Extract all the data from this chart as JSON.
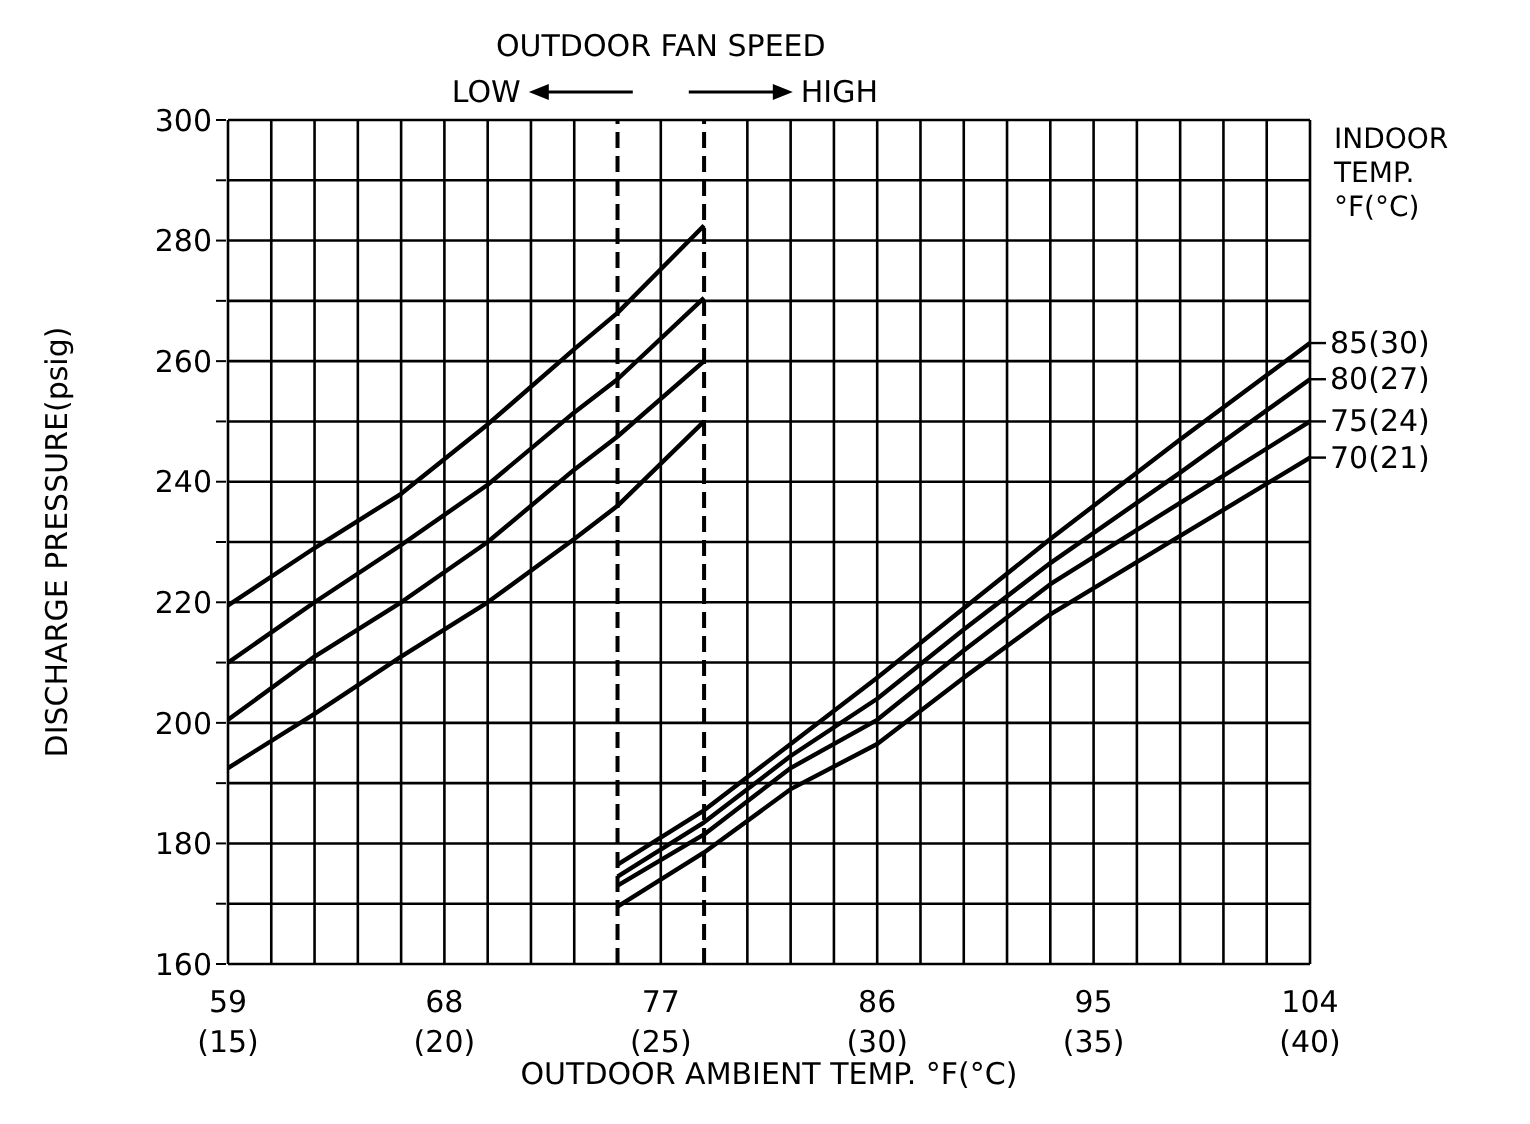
{
  "chart_data": {
    "type": "line",
    "xlabel": "OUTDOOR AMBIENT TEMP. °F(°C)",
    "ylabel": "DISCHARGE PRESSURE(psig)",
    "legend_title": "INDOOR TEMP. °F(°C)",
    "annotations": [
      "OUTDOOR FAN SPEED",
      "LOW",
      "HIGH"
    ],
    "xlim": [
      59,
      104
    ],
    "xticks": [
      59,
      {
        "value": 60.8,
        "label": null
      },
      {
        "value": 62.6,
        "label": null
      },
      {
        "value": 64.4,
        "label": null
      },
      {
        "value": 66.2,
        "label": null
      },
      68,
      {
        "value": 69.8,
        "label": null
      },
      {
        "value": 71.6,
        "label": null
      },
      {
        "value": 73.4,
        "label": null
      },
      77,
      {
        "value": 80.6,
        "label": null
      },
      {
        "value": 82.4,
        "label": null
      },
      {
        "value": 84.2,
        "label": null
      },
      86,
      {
        "value": 87.8,
        "label": null
      },
      {
        "value": 89.6,
        "label": null
      },
      {
        "value": 91.4,
        "label": null
      },
      {
        "value": 93.2,
        "label": null
      },
      95,
      {
        "value": 96.8,
        "label": null
      },
      {
        "value": 98.6,
        "label": null
      },
      {
        "value": 100.4,
        "label": null
      },
      {
        "value": 102.2,
        "label": null
      },
      104
    ],
    "x2lim": [
      15,
      40
    ],
    "x2ticks": [
      {
        "value": 15,
        "label": "(15)"
      },
      {
        "value": 20,
        "label": "(20)"
      },
      {
        "value": 25,
        "label": "(25)"
      },
      {
        "value": 30,
        "label": "(30)"
      },
      {
        "value": 35,
        "label": "(35)"
      },
      {
        "value": 40,
        "label": "(40)"
      }
    ],
    "ylim": [
      160,
      300
    ],
    "yticks": [
      160,
      {
        "value": 170,
        "label": null
      },
      180,
      {
        "value": 190,
        "label": null
      },
      200,
      {
        "value": 210,
        "label": null
      },
      220,
      {
        "value": 230,
        "label": null
      },
      240,
      {
        "value": 250,
        "label": null
      },
      260,
      {
        "value": 270,
        "label": null
      },
      280,
      {
        "value": 290,
        "label": null
      },
      300
    ],
    "grid": true,
    "legend": "right",
    "marker": "none",
    "line_style": "solid",
    "ref_lines": [
      {
        "axis": "x",
        "value": 75.2,
        "label": null,
        "color": "#000000",
        "line_style": "dashed"
      },
      {
        "axis": "x",
        "value": 78.8,
        "label": null,
        "color": "#000000",
        "line_style": "dashed"
      }
    ],
    "series": [
      {
        "color": "#000000",
        "x": [
          59,
          62.6,
          66.2,
          69.8,
          73.4,
          75.2,
          78.8
        ],
        "values": [
          219.5,
          229,
          238,
          249.5,
          262,
          268,
          282.5
        ]
      },
      {
        "color": "#000000",
        "x": [
          59,
          62.6,
          66.2,
          69.8,
          73.4,
          75.2,
          78.8
        ],
        "values": [
          210,
          220,
          229.5,
          239.5,
          251.5,
          257,
          270.5
        ]
      },
      {
        "color": "#000000",
        "x": [
          59,
          62.6,
          66.2,
          69.8,
          73.4,
          75.2,
          78.8
        ],
        "values": [
          200.5,
          211,
          220,
          230,
          242,
          247.5,
          260
        ]
      },
      {
        "color": "#000000",
        "x": [
          59,
          62.6,
          66.2,
          69.8,
          73.4,
          75.2,
          78.8
        ],
        "values": [
          192.5,
          201.5,
          211,
          220,
          230.5,
          236,
          250
        ]
      },
      {
        "name": "85(30)",
        "color": "#000000",
        "x": [
          75.2,
          78.8,
          82.4,
          86,
          89.6,
          93.2,
          98.6,
          104
        ],
        "values": [
          176.5,
          185.5,
          196.5,
          207.5,
          219,
          230.5,
          247,
          263
        ]
      },
      {
        "name": "80(27)",
        "color": "#000000",
        "x": [
          75.2,
          78.8,
          82.4,
          86,
          89.6,
          93.2,
          98.6,
          104
        ],
        "values": [
          174.5,
          183.5,
          194.5,
          204,
          215.5,
          226.5,
          241.5,
          257
        ]
      },
      {
        "name": "75(24)",
        "color": "#000000",
        "x": [
          75.2,
          78.8,
          82.4,
          86,
          89.6,
          93.2,
          98.6,
          104
        ],
        "values": [
          173,
          181.5,
          192.5,
          200.5,
          212,
          223,
          236.5,
          250
        ]
      },
      {
        "name": "70(21)",
        "color": "#000000",
        "x": [
          75.2,
          78.8,
          82.4,
          86,
          89.6,
          93.2,
          98.6,
          104
        ],
        "values": [
          169.5,
          178.5,
          189,
          196.5,
          207.5,
          218,
          231,
          244
        ]
      }
    ]
  }
}
